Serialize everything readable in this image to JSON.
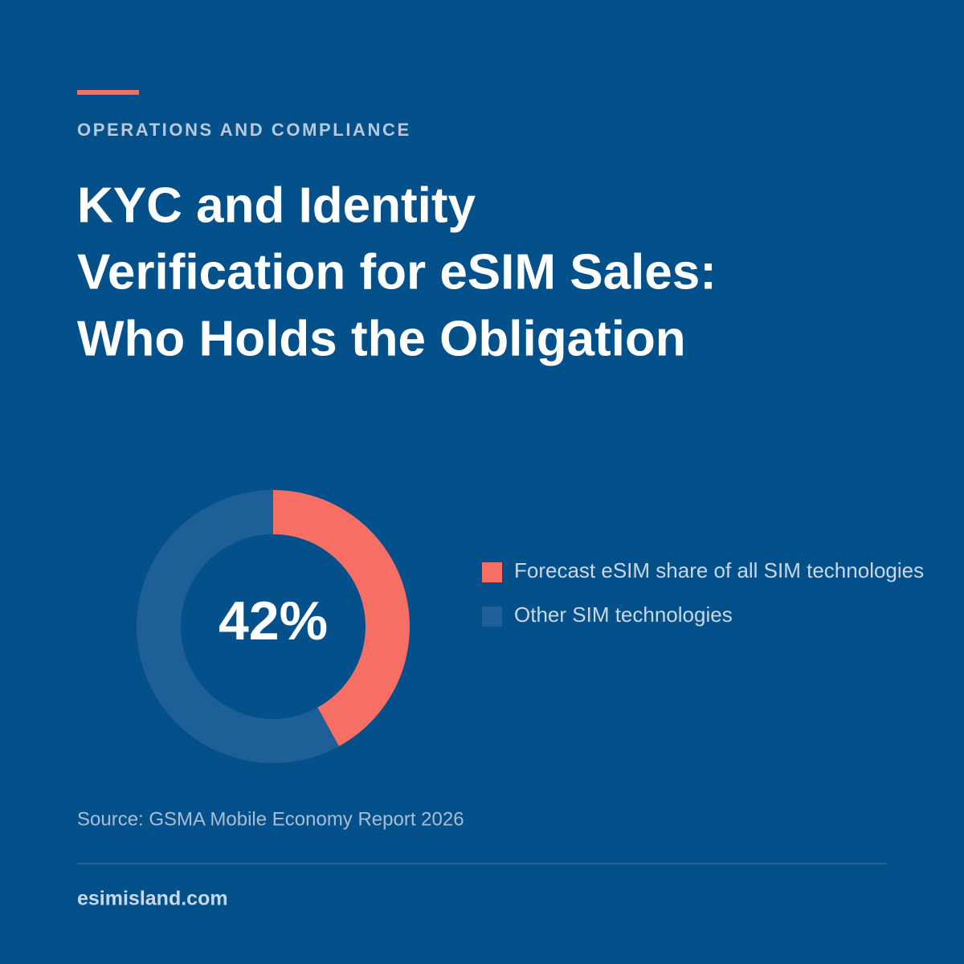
{
  "eyebrow": "OPERATIONS AND COMPLIANCE",
  "title": [
    "KYC and Identity",
    "Verification for eSIM Sales:",
    "Who Holds the Obligation"
  ],
  "chart_data": {
    "type": "donut",
    "categories": [
      "Forecast eSIM share of all SIM technologies",
      "Other SIM technologies"
    ],
    "values": [
      42,
      58
    ],
    "value_labels": [
      "42%",
      null
    ],
    "colors": [
      "#f76f64",
      "#1f5f98"
    ]
  },
  "source": "Source: GSMA Mobile Economy Report 2026",
  "footer": "esimisland.com"
}
